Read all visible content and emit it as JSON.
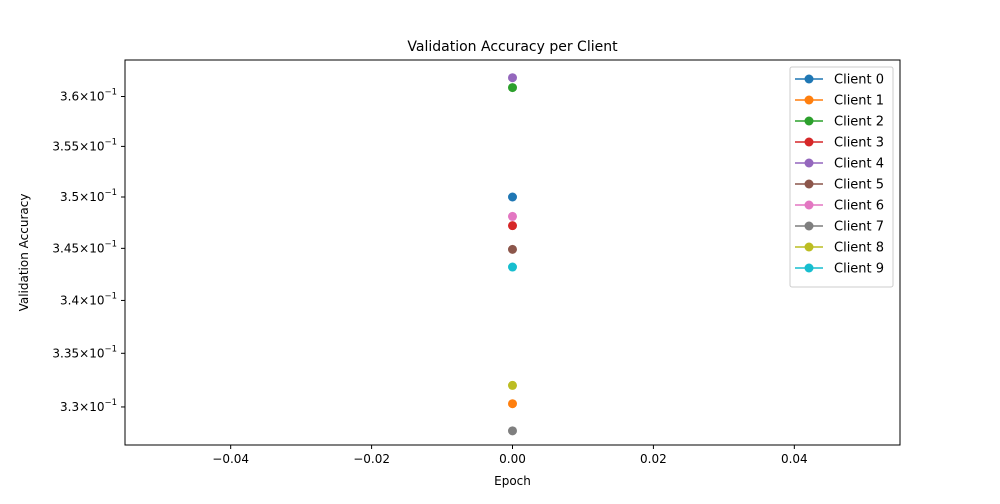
{
  "chart_data": {
    "type": "line",
    "title": "Validation Accuracy per Client",
    "xlabel": "Epoch",
    "ylabel": "Validation Accuracy",
    "xlim": [
      -0.055,
      0.055
    ],
    "ylim": [
      0.3265,
      0.3637
    ],
    "y_scale": "log",
    "grid": false,
    "legend_position": "upper right",
    "x_ticks": [
      {
        "value": -0.04,
        "label": "−0.04"
      },
      {
        "value": -0.02,
        "label": "−0.02"
      },
      {
        "value": 0.0,
        "label": "0.00"
      },
      {
        "value": 0.02,
        "label": "0.02"
      },
      {
        "value": 0.04,
        "label": "0.04"
      }
    ],
    "y_ticks": [
      {
        "value": 0.33,
        "mantissa": "3.3",
        "exp": "−1"
      },
      {
        "value": 0.335,
        "mantissa": "3.35",
        "exp": "−1"
      },
      {
        "value": 0.34,
        "mantissa": "3.4",
        "exp": "−1"
      },
      {
        "value": 0.345,
        "mantissa": "3.45",
        "exp": "−1"
      },
      {
        "value": 0.35,
        "mantissa": "3.5",
        "exp": "−1"
      },
      {
        "value": 0.355,
        "mantissa": "3.55",
        "exp": "−1"
      },
      {
        "value": 0.36,
        "mantissa": "3.6",
        "exp": "−1"
      }
    ],
    "series": [
      {
        "name": "Client 0",
        "color": "#1f77b4",
        "x": [
          0
        ],
        "values": [
          0.35
        ]
      },
      {
        "name": "Client 1",
        "color": "#ff7f0e",
        "x": [
          0
        ],
        "values": [
          0.3303
        ]
      },
      {
        "name": "Client 2",
        "color": "#2ca02c",
        "x": [
          0
        ],
        "values": [
          0.3609
        ]
      },
      {
        "name": "Client 3",
        "color": "#d62728",
        "x": [
          0
        ],
        "values": [
          0.3472
        ]
      },
      {
        "name": "Client 4",
        "color": "#9467bd",
        "x": [
          0
        ],
        "values": [
          0.3619
        ]
      },
      {
        "name": "Client 5",
        "color": "#8c564b",
        "x": [
          0
        ],
        "values": [
          0.3449
        ]
      },
      {
        "name": "Client 6",
        "color": "#e377c2",
        "x": [
          0
        ],
        "values": [
          0.3481
        ]
      },
      {
        "name": "Client 7",
        "color": "#7f7f7f",
        "x": [
          0
        ],
        "values": [
          0.3278
        ]
      },
      {
        "name": "Client 8",
        "color": "#bcbd22",
        "x": [
          0
        ],
        "values": [
          0.332
        ]
      },
      {
        "name": "Client 9",
        "color": "#17becf",
        "x": [
          0
        ],
        "values": [
          0.3432
        ]
      }
    ]
  }
}
